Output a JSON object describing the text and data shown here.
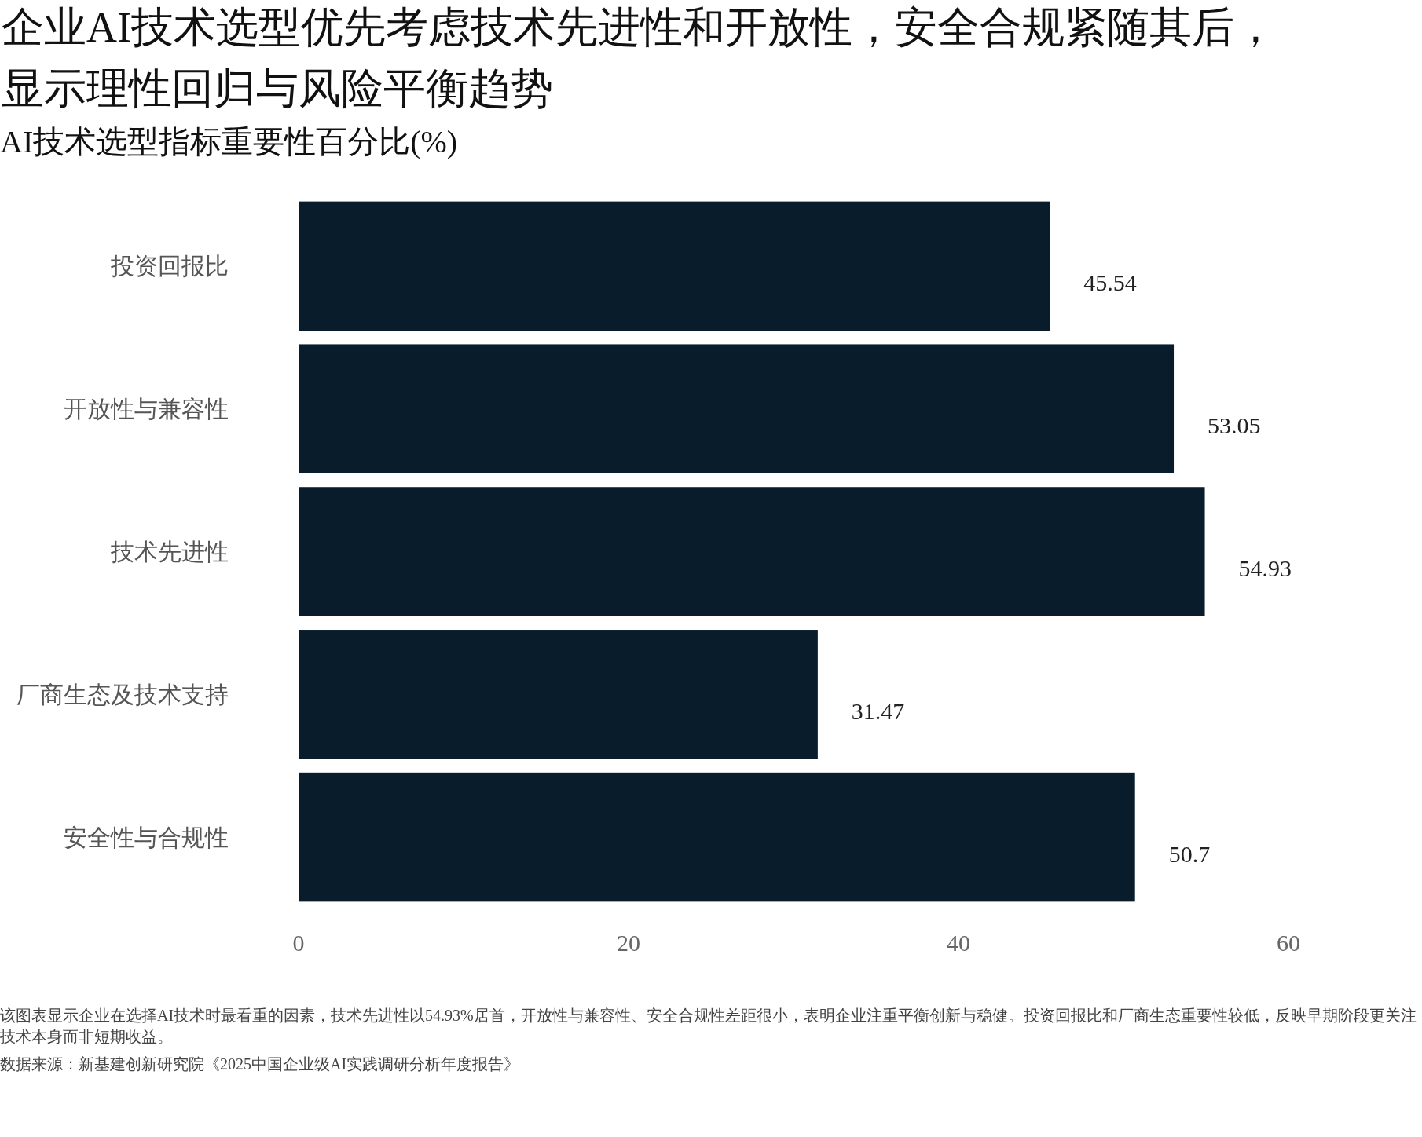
{
  "chart_data": {
    "type": "bar",
    "orientation": "horizontal",
    "title": "企业AI技术选型优先考虑技术先进性和开放性，安全合规紧随其后，显示理性回归与风险平衡趋势",
    "subtitle": "AI技术选型指标重要性百分比(%)",
    "categories": [
      "投资回报比",
      "开放性与兼容性",
      "技术先进性",
      "厂商生态及技术支持",
      "安全性与合规性"
    ],
    "values": [
      45.54,
      53.05,
      54.93,
      31.47,
      50.7
    ],
    "color": "#081c2c",
    "data_labels": true,
    "xlim": [
      0,
      60
    ],
    "xticks": [
      0,
      20,
      40,
      60
    ],
    "annotations": [
      "该图表显示企业在选择AI技术时最看重的因素，技术先进性以54.93%居首，开放性与兼容性、安全合规性差距很小，表明企业注重平衡创新与稳健。投资回报比和厂商生态重要性较低，反映早期阶段更关注技术本身而非短期收益。",
      "数据来源：新基建创新研究院《2025中国企业级AI实践调研分析年度报告》"
    ]
  }
}
